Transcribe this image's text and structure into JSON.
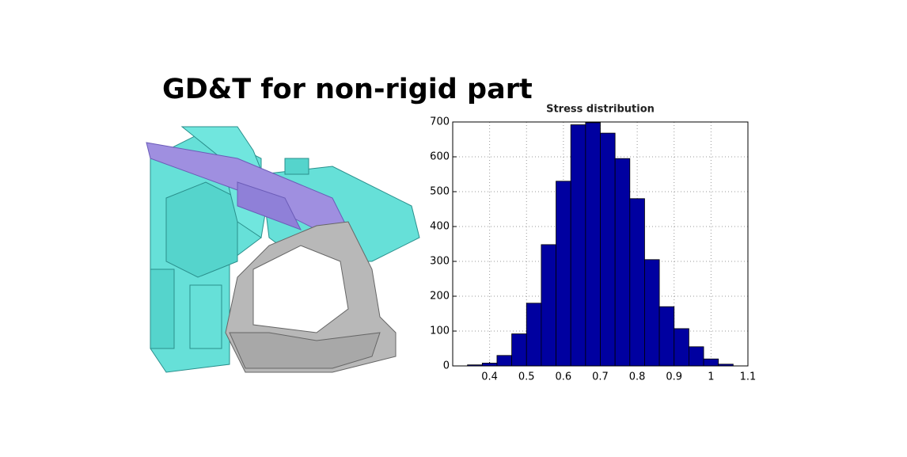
{
  "title": "GD&T for non-rigid part",
  "chart_data": {
    "type": "histogram",
    "title": "Stress distribution",
    "bins": [
      0.34,
      0.38,
      0.42,
      0.46,
      0.5,
      0.54,
      0.58,
      0.62,
      0.66,
      0.7,
      0.74,
      0.78,
      0.82,
      0.86,
      0.9,
      0.94,
      0.98,
      1.02,
      1.06
    ],
    "values": [
      3,
      8,
      30,
      92,
      180,
      348,
      530,
      692,
      698,
      668,
      595,
      480,
      305,
      170,
      107,
      55,
      20,
      5
    ],
    "color": "#0000a0",
    "xlim": [
      0.3,
      1.1
    ],
    "xticks": [
      0.4,
      0.5,
      0.6,
      0.7,
      0.8,
      0.9,
      1,
      1.1
    ],
    "ylim": [
      0,
      700
    ],
    "yticks": [
      0,
      100,
      200,
      300,
      400,
      500,
      600,
      700
    ],
    "grid": true
  }
}
